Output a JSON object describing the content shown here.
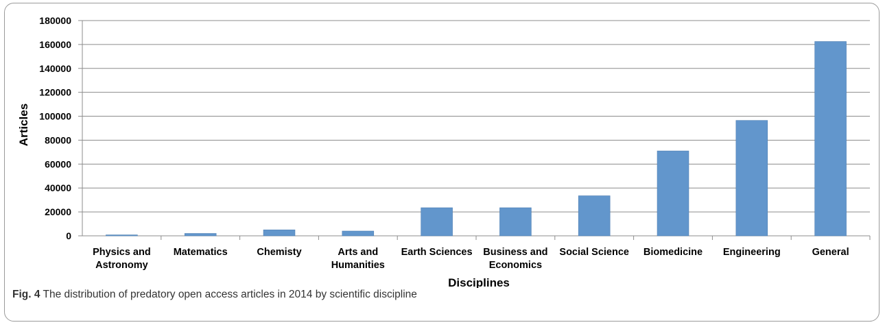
{
  "caption": {
    "label": "Fig. 4",
    "text": "The distribution of predatory open access articles in 2014 by scientific discipline"
  },
  "chart_data": {
    "type": "bar",
    "title": "",
    "xlabel": "Disciplines",
    "ylabel": "Articles",
    "ylim": [
      0,
      180000
    ],
    "yticks": [
      0,
      20000,
      40000,
      60000,
      80000,
      100000,
      120000,
      140000,
      160000,
      180000
    ],
    "grid": true,
    "bar_color": "#6296cc",
    "categories": [
      [
        "Physics and",
        "Astronomy"
      ],
      [
        "Matematics"
      ],
      [
        "Chemisty"
      ],
      [
        "Arts and",
        "Humanities"
      ],
      [
        "Earth Sciences"
      ],
      [
        "Business and",
        "Economics"
      ],
      [
        "Social Science"
      ],
      [
        "Biomedicine"
      ],
      [
        "Engineering"
      ],
      [
        "General"
      ]
    ],
    "values": [
      800,
      2000,
      5000,
      4000,
      23500,
      23500,
      33500,
      71000,
      96500,
      162500
    ]
  }
}
